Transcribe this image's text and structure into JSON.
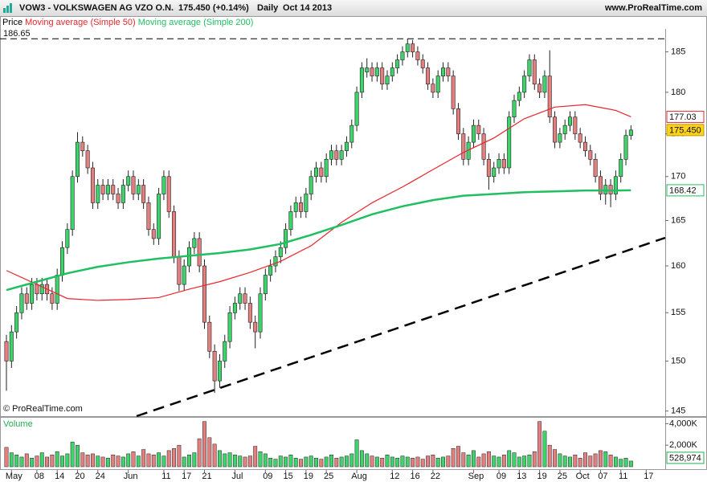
{
  "header": {
    "symbol": "VOW3 - VOLKSWAGEN AG VZO O.N.",
    "quote": "175.450 (+0.14%)",
    "period": "Daily",
    "date": "Oct 14 2013",
    "site": "www.ProRealTime.com"
  },
  "chart_data": [
    {
      "type": "candlestick",
      "legend_label": "Price",
      "credit": "© ProRealTime.com",
      "categories": [
        null,
        "May",
        null,
        null,
        null,
        null,
        "08",
        null,
        null,
        null,
        "14",
        null,
        null,
        null,
        "20",
        null,
        null,
        null,
        "24",
        null,
        null,
        null,
        null,
        null,
        "Jun",
        null,
        null,
        null,
        null,
        null,
        null,
        "11",
        null,
        null,
        null,
        "17",
        null,
        null,
        null,
        "21",
        null,
        null,
        null,
        null,
        null,
        "Jul",
        null,
        null,
        null,
        null,
        null,
        "09",
        null,
        null,
        null,
        "15",
        null,
        null,
        null,
        "19",
        null,
        null,
        null,
        "25",
        null,
        null,
        null,
        null,
        null,
        "Aug",
        null,
        null,
        null,
        null,
        null,
        null,
        "12",
        null,
        null,
        null,
        "16",
        null,
        null,
        null,
        "22",
        null,
        null,
        null,
        null,
        null,
        null,
        null,
        "Sep",
        null,
        null,
        null,
        null,
        "09",
        null,
        null,
        null,
        "13",
        null,
        null,
        null,
        "19",
        null,
        null,
        null,
        "25",
        null,
        null,
        null,
        "Oct",
        null,
        null,
        null,
        "07",
        null,
        null,
        null,
        "11",
        null,
        null,
        null,
        null,
        "17"
      ],
      "open": [
        152,
        150,
        153,
        155,
        157,
        156,
        158,
        157,
        158,
        157,
        156,
        159,
        162,
        164,
        170,
        174,
        173,
        171,
        167,
        169,
        168,
        169,
        168,
        167,
        169,
        170,
        168,
        169,
        167,
        164,
        163,
        168,
        170,
        166,
        161,
        158,
        160,
        162,
        163,
        160,
        154,
        151,
        148,
        150,
        152,
        155,
        156,
        157,
        156,
        154,
        153,
        157,
        159,
        160,
        161,
        162,
        164,
        166,
        167,
        166,
        168,
        170,
        171,
        170,
        172,
        173,
        172,
        173,
        174,
        176,
        180,
        182.5,
        183,
        182,
        183,
        181,
        182,
        183,
        184,
        185,
        186,
        185,
        184,
        183,
        181,
        180,
        182,
        183,
        182,
        178,
        175,
        172,
        174,
        176,
        175,
        172,
        170,
        171,
        172,
        171,
        177,
        179,
        180,
        182,
        184,
        181,
        180,
        182,
        177,
        174,
        175,
        176,
        177,
        175,
        174,
        173,
        172,
        170,
        168,
        169,
        168,
        170,
        172,
        174.8,
        null,
        null,
        null
      ],
      "high": [
        152.7,
        153.7,
        155.7,
        157.7,
        157.7,
        158.7,
        158.7,
        158.7,
        158.7,
        157.7,
        159.7,
        162.7,
        164.7,
        170.7,
        175.2,
        174.7,
        173.7,
        171.7,
        169.7,
        169.7,
        169.7,
        169.7,
        168.7,
        169.7,
        170.7,
        170.7,
        169.7,
        169.7,
        167.7,
        164.7,
        168.7,
        170.7,
        170.7,
        166.7,
        161.7,
        160.7,
        162.7,
        163.7,
        163.7,
        160.7,
        154.7,
        151.7,
        150.7,
        152.7,
        155.7,
        156.7,
        157.7,
        157.7,
        156.7,
        154.7,
        157.7,
        159.7,
        160.7,
        161.7,
        162.7,
        164.7,
        166.7,
        167.7,
        167.7,
        168.7,
        170.7,
        171.7,
        171.7,
        172.7,
        173.7,
        173.7,
        173.7,
        174.7,
        176.7,
        180.7,
        183.7,
        184.2,
        183.7,
        183.7,
        183.7,
        182.7,
        183.7,
        184.7,
        185.7,
        186.65,
        186.5,
        185.7,
        184.7,
        183.7,
        181.7,
        182.7,
        183.7,
        183.7,
        182.7,
        178.7,
        175.7,
        174.7,
        176.7,
        176.7,
        175.7,
        172.7,
        171.7,
        172.7,
        172.7,
        177.7,
        179.7,
        180.7,
        182.7,
        184.7,
        184.7,
        181.7,
        182.7,
        185.2,
        177.7,
        175.7,
        176.7,
        177.7,
        177.7,
        175.7,
        174.7,
        173.7,
        172.7,
        170.7,
        169.7,
        169.7,
        170.7,
        172.7,
        175.5,
        176,
        null,
        null,
        null
      ],
      "low": [
        147,
        149.3,
        152.3,
        154.3,
        155.3,
        155.3,
        156.3,
        156.3,
        156.3,
        155.3,
        155.3,
        158.3,
        161.3,
        163.3,
        169.3,
        172.3,
        170.3,
        166.3,
        166.3,
        167.3,
        167.3,
        167.3,
        166.3,
        166.3,
        168.3,
        167.3,
        167.3,
        166.3,
        163.3,
        162.3,
        162.3,
        167.3,
        165.3,
        160.3,
        157.3,
        157.3,
        159.3,
        161.3,
        159.3,
        153.3,
        150.3,
        146.8,
        147.3,
        149.3,
        151.3,
        154.3,
        155.3,
        155.3,
        153.3,
        151.3,
        152.3,
        156.3,
        158.3,
        159.3,
        160.3,
        161.3,
        163.3,
        165.3,
        165.3,
        165.3,
        167.3,
        169.3,
        169.3,
        169.3,
        171.3,
        171.3,
        171.3,
        172.3,
        173.3,
        175.3,
        179.3,
        181.8,
        181.3,
        181.3,
        180.3,
        180.3,
        181.3,
        182.3,
        183.3,
        184.3,
        184.3,
        183.3,
        182.3,
        180.3,
        179.3,
        179.3,
        181.3,
        181.3,
        177.3,
        174.3,
        171.3,
        171.3,
        173.3,
        174.3,
        171.3,
        168.5,
        169.3,
        170.3,
        170.3,
        170.3,
        176.3,
        178.3,
        179.3,
        181.3,
        180.3,
        179.3,
        179.3,
        176.3,
        173.3,
        173.3,
        174.3,
        175.3,
        174.3,
        173.3,
        172.3,
        171.3,
        169.3,
        167.3,
        166.8,
        166.5,
        167.3,
        169.3,
        171.3,
        174.3,
        null,
        null,
        null
      ],
      "close": [
        150,
        153,
        155,
        157,
        156,
        158,
        157,
        158,
        157,
        156,
        159,
        162,
        164,
        170,
        174,
        173,
        171,
        167,
        169,
        168,
        169,
        168,
        167,
        169,
        170,
        168,
        169,
        167,
        164,
        163,
        168,
        170,
        166,
        161,
        158,
        160,
        162,
        163,
        160,
        154,
        151,
        148,
        150,
        152,
        155,
        156,
        157,
        156,
        154,
        153,
        157,
        159,
        160,
        161,
        162,
        164,
        166,
        167,
        166,
        168,
        170,
        171,
        170,
        172,
        173,
        172,
        173,
        174,
        176,
        180,
        183,
        183,
        182,
        183,
        181,
        182,
        183,
        184,
        185,
        186,
        185,
        184,
        183,
        181,
        180,
        182,
        183,
        182,
        178,
        175,
        172,
        174,
        176,
        175,
        172,
        170,
        171,
        172,
        171,
        177,
        179,
        180,
        182,
        184,
        181,
        180,
        182,
        177,
        174,
        175,
        176,
        177,
        175,
        174,
        173,
        172,
        170,
        168,
        169,
        168,
        170,
        172,
        174.8,
        175.45,
        null,
        null,
        null
      ],
      "last_close_label": "175.450",
      "up_color": "#3fd36b",
      "down_color": "#e47f80",
      "series": [
        {
          "name": "Moving average (Simple 50)",
          "color": "#e8262b",
          "x": [
            0,
            6,
            12,
            18,
            24,
            30,
            36,
            42,
            48,
            54,
            60,
            66,
            72,
            78,
            84,
            90,
            96,
            102,
            108,
            114,
            120,
            123
          ],
          "values": [
            159.5,
            158,
            156.5,
            156.3,
            156.4,
            156.6,
            157.5,
            158.3,
            159.3,
            160.5,
            162.2,
            164.8,
            167,
            168.8,
            170.8,
            172.8,
            174.5,
            176.8,
            178.2,
            178.5,
            177.8,
            177.03
          ]
        },
        {
          "name": "Moving average (Simple 200)",
          "color": "#20c060",
          "x": [
            0,
            6,
            12,
            18,
            24,
            30,
            36,
            42,
            48,
            54,
            60,
            66,
            72,
            78,
            84,
            90,
            96,
            102,
            108,
            114,
            120,
            123
          ],
          "values": [
            157.4,
            158.3,
            159.2,
            159.9,
            160.4,
            160.8,
            161.1,
            161.4,
            161.8,
            162.4,
            163.4,
            164.5,
            165.7,
            166.6,
            167.3,
            167.8,
            168,
            168.2,
            168.3,
            168.4,
            168.4,
            168.42
          ]
        }
      ],
      "high_line": 186.65,
      "ylim": [
        144.5,
        187.7
      ],
      "yticks": [
        145,
        150,
        155,
        160,
        165,
        170,
        175,
        180,
        185
      ],
      "log_scale": true,
      "grid": false
    },
    {
      "type": "volume_bar",
      "title": "Volume",
      "values": [
        1800000,
        1300000,
        1100000,
        900000,
        1200000,
        800000,
        1000000,
        1300000,
        900000,
        1100000,
        1400000,
        1000000,
        1200000,
        2300000,
        2000000,
        1300000,
        1100000,
        1200000,
        1000000,
        900000,
        800000,
        1100000,
        1000000,
        900000,
        1200000,
        1400000,
        1000000,
        1600000,
        1200000,
        1100000,
        1300000,
        1000000,
        1500000,
        1700000,
        2000000,
        900000,
        1100000,
        1300000,
        2600000,
        4200000,
        2700000,
        2100000,
        1500000,
        1200000,
        1300000,
        1100000,
        1000000,
        900000,
        1000000,
        1900000,
        1400000,
        1200000,
        800000,
        700000,
        1000000,
        900000,
        1100000,
        800000,
        700000,
        900000,
        1000000,
        800000,
        700000,
        900000,
        1100000,
        800000,
        900000,
        1000000,
        1200000,
        2500000,
        1500000,
        1200000,
        1000000,
        900000,
        800000,
        1100000,
        900000,
        800000,
        1000000,
        900000,
        800000,
        900000,
        700000,
        1000000,
        1100000,
        800000,
        900000,
        1000000,
        1700000,
        1900000,
        1300000,
        1100000,
        1500000,
        900000,
        1200000,
        1400000,
        1000000,
        900000,
        1100000,
        1500000,
        1300000,
        900000,
        1000000,
        1100000,
        1400000,
        4200000,
        3300000,
        2000000,
        1600000,
        1200000,
        1000000,
        900000,
        1100000,
        800000,
        1300000,
        1000000,
        1200000,
        1500000,
        1400000,
        1100000,
        900000,
        700000,
        800000,
        528974,
        null,
        null,
        null
      ],
      "last_label": "528,974",
      "ylim": [
        0,
        4400000
      ],
      "yticks": [
        {
          "value": 2000000,
          "label": "2,000K"
        },
        {
          "value": 4000000,
          "label": "4,000K"
        }
      ]
    }
  ]
}
